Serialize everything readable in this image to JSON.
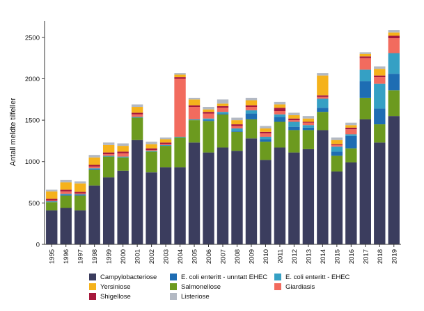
{
  "chart_data": {
    "type": "bar",
    "stacked": true,
    "title": "",
    "xlabel": "",
    "ylabel": "Antall meldte tilfeller",
    "ylim": [
      0,
      2700
    ],
    "yticks": [
      0,
      500,
      1000,
      1500,
      2000,
      2500
    ],
    "categories": [
      "1995",
      "1996",
      "1997",
      "1998",
      "1999",
      "2000",
      "2001",
      "2002",
      "2003",
      "2004",
      "2005",
      "2006",
      "2007",
      "2008",
      "2009",
      "2010",
      "2011",
      "2012",
      "2013",
      "2014",
      "2015",
      "2016",
      "2017",
      "2018",
      "2019"
    ],
    "series": [
      {
        "name": "Campylobacteriose",
        "color": "#3b3d5e",
        "values": [
          410,
          440,
          410,
          710,
          810,
          890,
          1260,
          870,
          930,
          930,
          1230,
          1110,
          1170,
          1130,
          1280,
          1020,
          1170,
          1110,
          1150,
          1380,
          880,
          990,
          1510,
          1230,
          1550
        ]
      },
      {
        "name": "Salmonellose",
        "color": "#6c9a1f",
        "values": [
          100,
          150,
          180,
          190,
          250,
          160,
          270,
          250,
          260,
          360,
          270,
          380,
          400,
          230,
          230,
          220,
          310,
          270,
          230,
          220,
          190,
          170,
          260,
          220,
          310
        ]
      },
      {
        "name": "E. coli enteritt - unntatt EHEC",
        "color": "#1e6db3",
        "values": [
          0,
          10,
          10,
          10,
          0,
          0,
          0,
          0,
          0,
          0,
          0,
          10,
          10,
          10,
          70,
          30,
          60,
          40,
          30,
          50,
          50,
          150,
          200,
          190,
          200
        ]
      },
      {
        "name": "E. coli enteritt - EHEC",
        "color": "#35a0c4",
        "values": [
          10,
          10,
          5,
          10,
          10,
          10,
          10,
          10,
          10,
          10,
          10,
          20,
          20,
          30,
          40,
          30,
          30,
          60,
          30,
          110,
          60,
          20,
          140,
          300,
          250
        ]
      },
      {
        "name": "Giardiasis",
        "color": "#f26b5e",
        "values": [
          10,
          30,
          10,
          20,
          20,
          40,
          30,
          10,
          10,
          700,
          150,
          60,
          50,
          30,
          40,
          40,
          40,
          20,
          30,
          20,
          20,
          60,
          140,
          80,
          180
        ]
      },
      {
        "name": "Shigellose",
        "color": "#a6193c",
        "values": [
          20,
          20,
          20,
          20,
          20,
          20,
          20,
          20,
          20,
          20,
          20,
          20,
          20,
          20,
          20,
          20,
          40,
          20,
          10,
          20,
          10,
          20,
          20,
          20,
          30
        ]
      },
      {
        "name": "Yersiniose",
        "color": "#f5b21b",
        "values": [
          90,
          90,
          100,
          90,
          90,
          70,
          70,
          50,
          40,
          30,
          70,
          30,
          30,
          50,
          60,
          40,
          40,
          40,
          40,
          240,
          50,
          30,
          30,
          80,
          40
        ]
      },
      {
        "name": "Listeriose",
        "color": "#b3b9c3",
        "values": [
          20,
          30,
          25,
          30,
          30,
          30,
          30,
          30,
          20,
          20,
          20,
          30,
          50,
          30,
          30,
          30,
          30,
          30,
          30,
          30,
          30,
          30,
          20,
          30,
          30
        ]
      }
    ],
    "legend_position": "bottom",
    "grid": false
  }
}
